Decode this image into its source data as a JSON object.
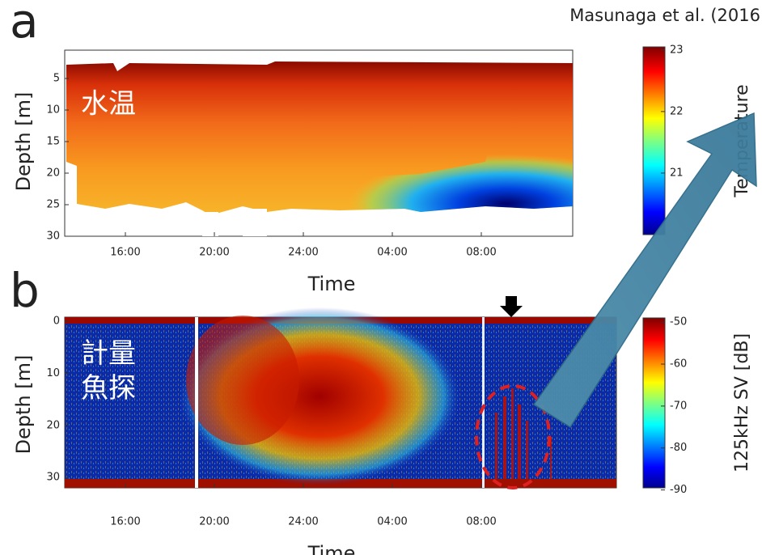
{
  "citation": "Masunaga et al. (2016",
  "chart_data": [
    {
      "type": "heatmap",
      "panel_label": "a",
      "annotation": [
        "水温"
      ],
      "x_label": "Time",
      "y_label": "Depth [m]",
      "categories": [
        "16:00",
        "20:00",
        "24:00",
        "04:00",
        "08:00"
      ],
      "ylim": [
        0,
        30
      ],
      "yticks": [
        5,
        10,
        15,
        20,
        25,
        30
      ],
      "colorbar": {
        "label": "Temperature",
        "clim": [
          20,
          23.05
        ],
        "ticks": [
          21,
          22,
          23
        ]
      }
    },
    {
      "type": "heatmap",
      "panel_label": "b",
      "annotation": [
        "計量",
        "魚探"
      ],
      "x_label": "Time",
      "y_label": "Depth [m]",
      "categories": [
        "16:00",
        "20:00",
        "24:00",
        "04:00",
        "08:00"
      ],
      "ylim": [
        0,
        32
      ],
      "yticks": [
        0,
        10,
        20,
        30
      ],
      "colorbar": {
        "label": "125kHz SV [dB]",
        "clim": [
          -89.5,
          -49
        ],
        "ticks": [
          -50,
          -60,
          -70,
          -80,
          -90
        ]
      }
    }
  ]
}
